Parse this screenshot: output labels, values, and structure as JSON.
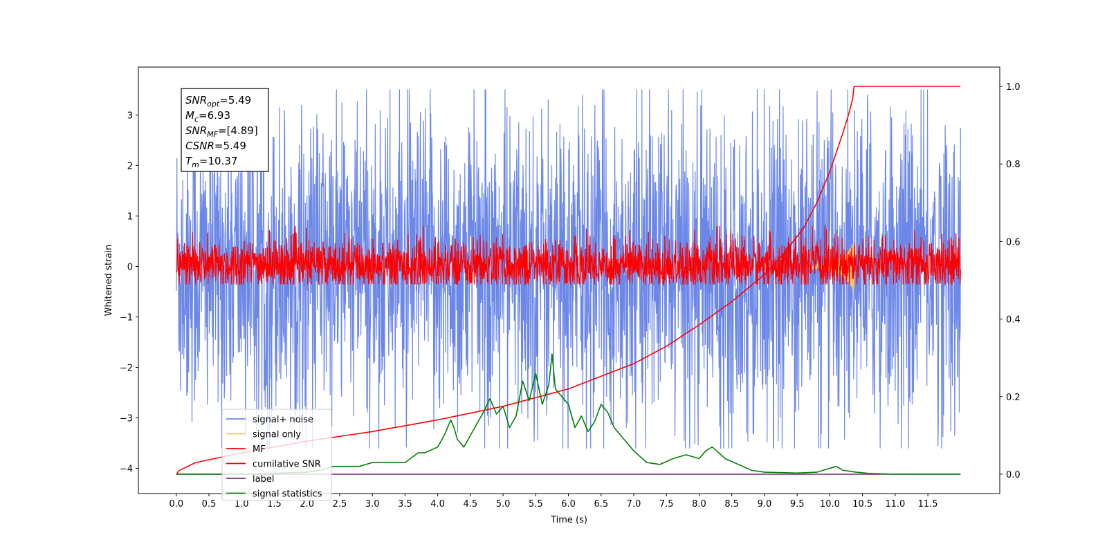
{
  "chart_data": {
    "type": "line",
    "xlabel": "Time (s)",
    "ylabel": "Whitened strain",
    "xlim": [
      -0.58,
      12.6
    ],
    "ylim_left": [
      -4.5,
      3.95
    ],
    "ylim_right": [
      -0.05,
      1.05
    ],
    "x_ticks": [
      "0.0",
      "0.5",
      "1.0",
      "1.5",
      "2.0",
      "2.5",
      "3.0",
      "3.5",
      "4.0",
      "4.5",
      "5.0",
      "5.5",
      "6.0",
      "6.5",
      "7.0",
      "7.5",
      "8.0",
      "8.5",
      "9.0",
      "9.5",
      "10.0",
      "10.5",
      "11.0",
      "11.5"
    ],
    "x_tick_values": [
      0.0,
      0.5,
      1.0,
      1.5,
      2.0,
      2.5,
      3.0,
      3.5,
      4.0,
      4.5,
      5.0,
      5.5,
      6.0,
      6.5,
      7.0,
      7.5,
      8.0,
      8.5,
      9.0,
      9.5,
      10.0,
      10.5,
      11.0,
      11.5
    ],
    "y_ticks_left": [
      "3",
      "2",
      "1",
      "0",
      "−1",
      "−2",
      "−3",
      "−4"
    ],
    "y_tick_values_left": [
      3,
      2,
      1,
      0,
      -1,
      -2,
      -3,
      -4
    ],
    "y_ticks_right": [
      "1.0",
      "0.8",
      "0.6",
      "0.4",
      "0.2",
      "0.0"
    ],
    "y_tick_values_right": [
      1.0,
      0.8,
      0.6,
      0.4,
      0.2,
      0.0
    ],
    "legend_position": "lower-left",
    "series": [
      {
        "name": "signal+ noise",
        "color": "#6b87e8",
        "axis": "left",
        "kind": "noise",
        "x_range": [
          0,
          12
        ],
        "envelope": [
          -3.6,
          3.5
        ]
      },
      {
        "name": "signal only",
        "color": "#f5c26b",
        "axis": "left",
        "kind": "chirp",
        "x_range": [
          9.7,
          10.37
        ]
      },
      {
        "name": "MF",
        "color": "#ff0000",
        "axis": "left",
        "kind": "noise",
        "x_range": [
          0,
          12
        ],
        "envelope": [
          -0.35,
          0.8
        ]
      },
      {
        "name": "cumilative SNR",
        "color": "#ff0000",
        "axis": "right",
        "x": [
          0,
          0.05,
          0.3,
          1,
          2,
          3,
          4,
          5,
          6,
          7,
          7.5,
          8,
          8.5,
          9,
          9.3,
          9.6,
          9.8,
          10.0,
          10.1,
          10.2,
          10.3,
          10.35,
          10.37,
          10.5,
          11,
          11.5,
          12
        ],
        "values": [
          0.0,
          0.01,
          0.03,
          0.055,
          0.085,
          0.11,
          0.14,
          0.175,
          0.22,
          0.285,
          0.33,
          0.385,
          0.445,
          0.515,
          0.57,
          0.635,
          0.7,
          0.78,
          0.83,
          0.88,
          0.935,
          0.97,
          1.0,
          1.0,
          1.0,
          1.0,
          1.0
        ]
      },
      {
        "name": "label",
        "color": "#7b2a7e",
        "axis": "right",
        "x": [
          0,
          12
        ],
        "values": [
          0.0,
          0.0
        ]
      },
      {
        "name": "signal statistics",
        "color": "#008000",
        "axis": "right",
        "x": [
          0,
          1,
          2,
          2.2,
          2.4,
          2.5,
          2.8,
          3.0,
          3.5,
          3.7,
          3.8,
          4.0,
          4.1,
          4.2,
          4.25,
          4.3,
          4.4,
          4.5,
          4.6,
          4.7,
          4.8,
          4.9,
          5.0,
          5.1,
          5.2,
          5.3,
          5.4,
          5.5,
          5.6,
          5.7,
          5.75,
          5.8,
          5.9,
          6.0,
          6.1,
          6.2,
          6.3,
          6.4,
          6.5,
          6.6,
          6.7,
          6.8,
          6.9,
          7.0,
          7.2,
          7.4,
          7.6,
          7.8,
          8.0,
          8.1,
          8.2,
          8.4,
          8.6,
          8.8,
          9.0,
          9.5,
          9.8,
          10.0,
          10.1,
          10.2,
          10.4,
          10.6,
          11,
          12
        ],
        "values": [
          0.0,
          0.0,
          0.005,
          0.01,
          0.02,
          0.02,
          0.02,
          0.03,
          0.03,
          0.055,
          0.055,
          0.07,
          0.1,
          0.14,
          0.12,
          0.09,
          0.07,
          0.1,
          0.13,
          0.16,
          0.195,
          0.155,
          0.175,
          0.12,
          0.15,
          0.24,
          0.19,
          0.26,
          0.18,
          0.23,
          0.31,
          0.22,
          0.2,
          0.18,
          0.12,
          0.15,
          0.11,
          0.135,
          0.18,
          0.16,
          0.12,
          0.1,
          0.08,
          0.06,
          0.03,
          0.025,
          0.04,
          0.05,
          0.04,
          0.06,
          0.07,
          0.04,
          0.025,
          0.01,
          0.005,
          0.003,
          0.005,
          0.015,
          0.02,
          0.01,
          0.005,
          0.002,
          0.0,
          0.0
        ]
      }
    ],
    "annotation": {
      "lines": [
        {
          "symbol": "SNR",
          "sub": "opt",
          "value": "=5.49"
        },
        {
          "symbol": "M",
          "sub": "c",
          "value": "=6.93"
        },
        {
          "symbol": "SNR",
          "sub": "MF",
          "value": "=[4.89]"
        },
        {
          "symbol": "CSNR",
          "sub": "",
          "value": "=5.49"
        },
        {
          "symbol": "T",
          "sub": "m",
          "value": "=10.37"
        }
      ]
    }
  }
}
